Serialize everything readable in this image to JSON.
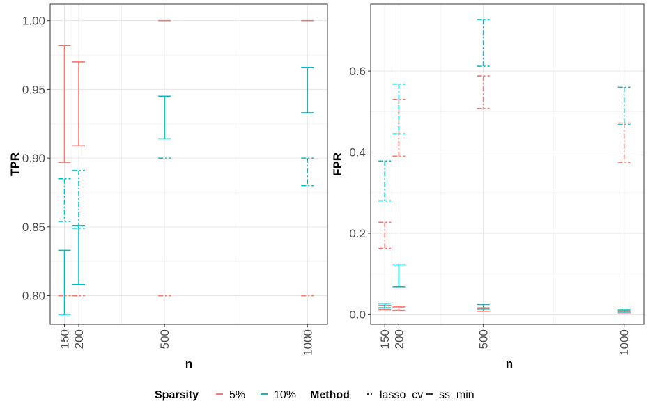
{
  "chart_data": [
    {
      "type": "errorbar",
      "ylabel": "TPR",
      "xlabel": "n",
      "x_ticks": [
        150,
        200,
        500,
        1000
      ],
      "x_tick_labels": [
        "150",
        "200",
        "500",
        "1000"
      ],
      "xlim": [
        100,
        1070
      ],
      "ylim": [
        0.779,
        1.012
      ],
      "y_ticks": [
        0.8,
        0.85,
        0.9,
        0.95,
        1.0
      ],
      "y_tick_labels": [
        "0.80",
        "0.85",
        "0.90",
        "0.95",
        "1.00"
      ],
      "grid": true,
      "series": [
        {
          "sparsity": "5%",
          "method": "ss_min",
          "points": [
            {
              "x": 150,
              "low": 0.897,
              "high": 0.982
            },
            {
              "x": 200,
              "low": 0.909,
              "high": 0.97
            },
            {
              "x": 500,
              "low": 1.0,
              "high": 1.0
            },
            {
              "x": 1000,
              "low": 1.0,
              "high": 1.0
            }
          ]
        },
        {
          "sparsity": "5%",
          "method": "lasso_cv",
          "points": [
            {
              "x": 150,
              "low": 0.8,
              "high": 0.8
            },
            {
              "x": 200,
              "low": 0.8,
              "high": 0.8
            },
            {
              "x": 500,
              "low": 0.8,
              "high": 0.8
            },
            {
              "x": 1000,
              "low": 0.8,
              "high": 0.8
            }
          ]
        },
        {
          "sparsity": "10%",
          "method": "ss_min",
          "points": [
            {
              "x": 150,
              "low": 0.786,
              "high": 0.833
            },
            {
              "x": 200,
              "low": 0.808,
              "high": 0.851
            },
            {
              "x": 500,
              "low": 0.914,
              "high": 0.945
            },
            {
              "x": 1000,
              "low": 0.933,
              "high": 0.966
            }
          ]
        },
        {
          "sparsity": "10%",
          "method": "lasso_cv",
          "points": [
            {
              "x": 150,
              "low": 0.854,
              "high": 0.885
            },
            {
              "x": 200,
              "low": 0.849,
              "high": 0.891
            },
            {
              "x": 500,
              "low": 0.9,
              "high": 0.9
            },
            {
              "x": 1000,
              "low": 0.88,
              "high": 0.9
            }
          ]
        }
      ]
    },
    {
      "type": "errorbar",
      "ylabel": "FPR",
      "xlabel": "n",
      "x_ticks": [
        150,
        200,
        500,
        1000
      ],
      "x_tick_labels": [
        "150",
        "200",
        "500",
        "1000"
      ],
      "xlim": [
        100,
        1070
      ],
      "ylim": [
        -0.025,
        0.765
      ],
      "y_ticks": [
        0.0,
        0.2,
        0.4,
        0.6
      ],
      "y_tick_labels": [
        "0.0",
        "0.2",
        "0.4",
        "0.6"
      ],
      "grid": true,
      "series": [
        {
          "sparsity": "5%",
          "method": "ss_min",
          "points": [
            {
              "x": 150,
              "low": 0.012,
              "high": 0.022
            },
            {
              "x": 200,
              "low": 0.01,
              "high": 0.018
            },
            {
              "x": 500,
              "low": 0.008,
              "high": 0.016
            },
            {
              "x": 1000,
              "low": 0.003,
              "high": 0.007
            }
          ]
        },
        {
          "sparsity": "5%",
          "method": "lasso_cv",
          "points": [
            {
              "x": 150,
              "low": 0.163,
              "high": 0.227
            },
            {
              "x": 200,
              "low": 0.39,
              "high": 0.53
            },
            {
              "x": 500,
              "low": 0.508,
              "high": 0.588
            },
            {
              "x": 1000,
              "low": 0.375,
              "high": 0.472
            }
          ]
        },
        {
          "sparsity": "10%",
          "method": "ss_min",
          "points": [
            {
              "x": 150,
              "low": 0.016,
              "high": 0.026
            },
            {
              "x": 200,
              "low": 0.068,
              "high": 0.122
            },
            {
              "x": 500,
              "low": 0.013,
              "high": 0.024
            },
            {
              "x": 1000,
              "low": 0.004,
              "high": 0.011
            }
          ]
        },
        {
          "sparsity": "10%",
          "method": "lasso_cv",
          "points": [
            {
              "x": 150,
              "low": 0.28,
              "high": 0.378
            },
            {
              "x": 200,
              "low": 0.445,
              "high": 0.568
            },
            {
              "x": 500,
              "low": 0.612,
              "high": 0.727
            },
            {
              "x": 1000,
              "low": 0.468,
              "high": 0.56
            }
          ]
        }
      ]
    }
  ],
  "legend": {
    "position": "bottom",
    "sparsity_title": "Sparsity",
    "sparsity_items": [
      {
        "label": "5%",
        "color": "#F8766D"
      },
      {
        "label": "10%",
        "color": "#00BFC4"
      }
    ],
    "method_title": "Method",
    "method_items": [
      {
        "label": "lasso_cv",
        "linetype": "dotdash"
      },
      {
        "label": "ss_min",
        "linetype": "solid"
      }
    ]
  },
  "colors": {
    "5%": "#F8766D",
    "10%": "#00BFC4"
  }
}
